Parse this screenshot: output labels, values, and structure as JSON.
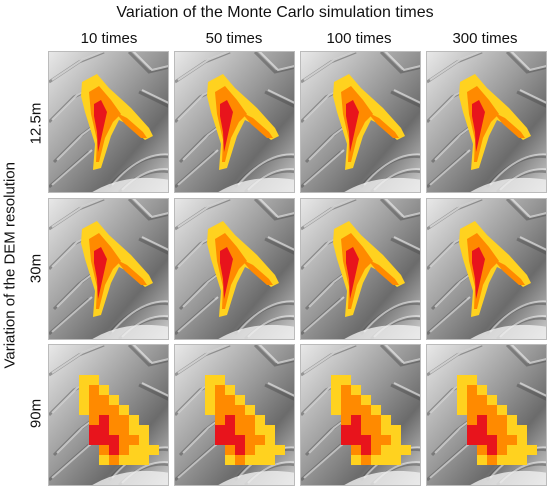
{
  "figure": {
    "title": "Variation of the Monte Carlo simulation times",
    "y_axis_title": "Variation of the DEM resolution",
    "columns": [
      "10 times",
      "50 times",
      "100 times",
      "300 times"
    ],
    "rows": [
      "12.5m",
      "30m",
      "90m"
    ]
  },
  "colors": {
    "flow_high": "#e8141c",
    "flow_mid": "#ff8a00",
    "flow_low": "#ffd21f",
    "terrain_light": "#e8e8e8",
    "terrain_dark": "#6b6b6b"
  }
}
